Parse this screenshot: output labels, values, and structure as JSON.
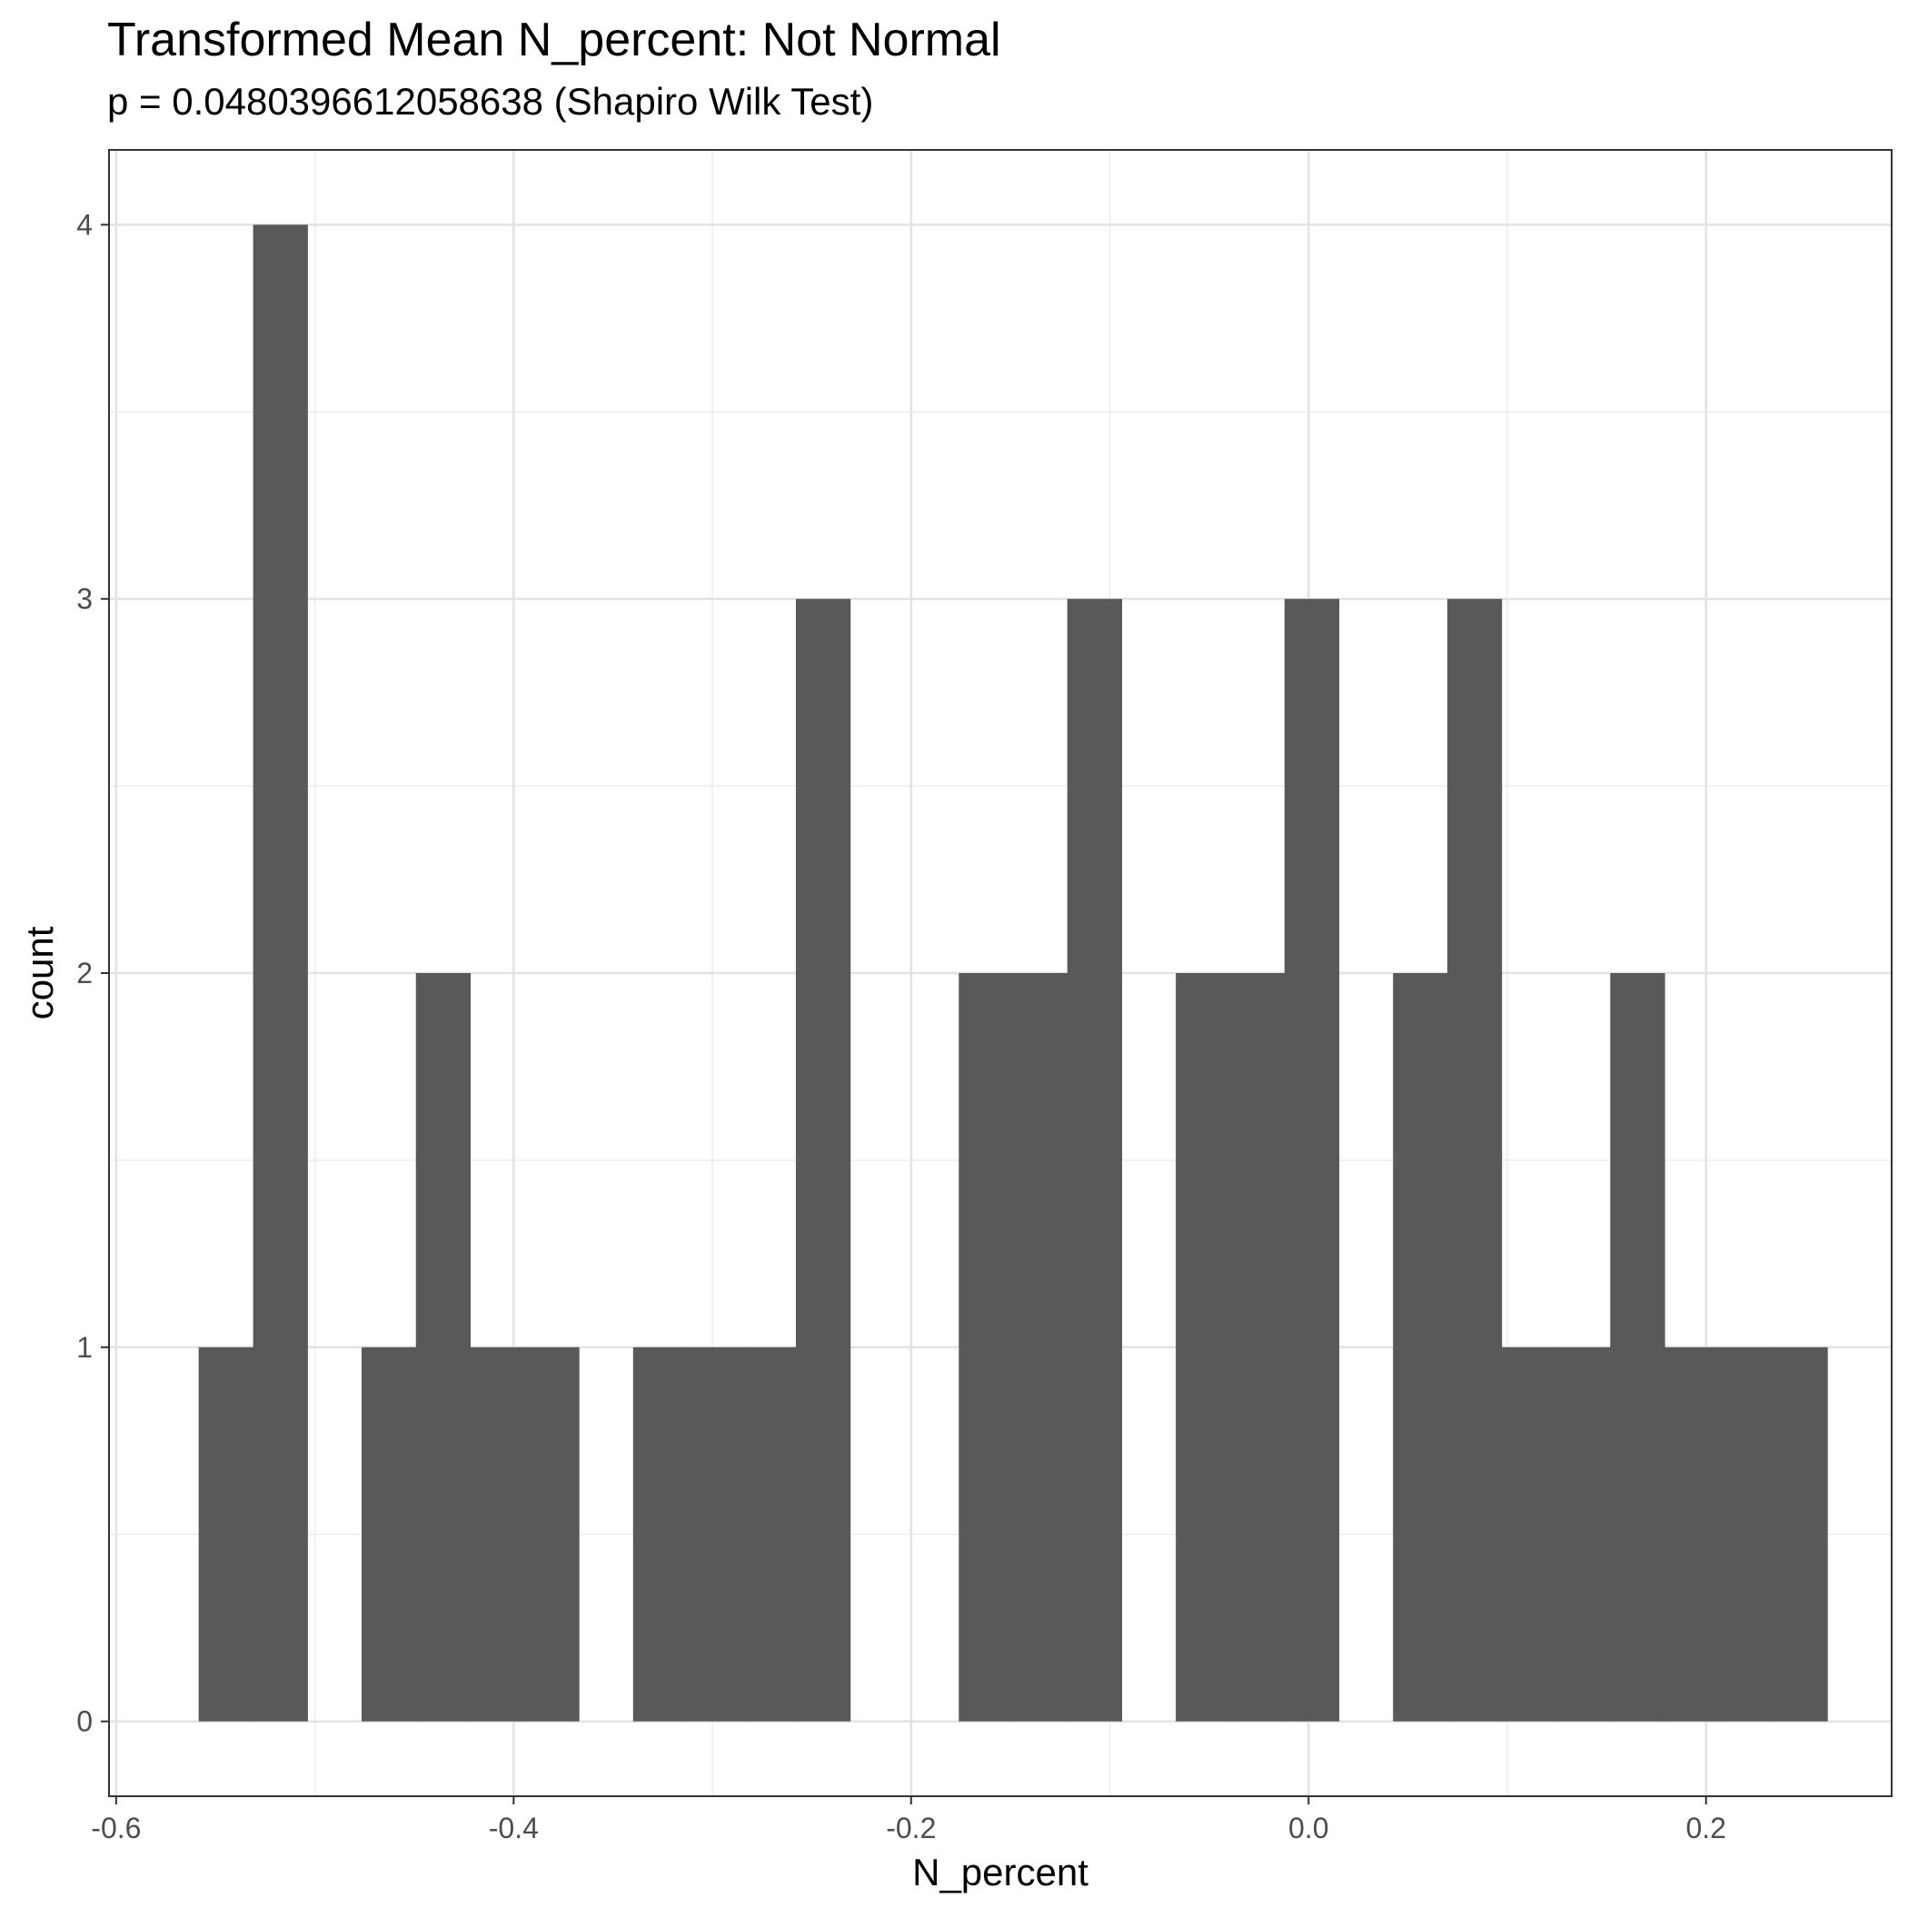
{
  "chart_data": {
    "type": "bar",
    "title": "Transformed Mean N_percent: Not Normal",
    "subtitle": "p = 0.0480396612058638 (Shapiro Wilk Test)",
    "xlabel": "N_percent",
    "ylabel": "count",
    "xlim": [
      -0.6036,
      0.2934
    ],
    "ylim": [
      -0.2,
      4.2
    ],
    "x_ticks": [
      -0.6,
      -0.4,
      -0.2,
      0.0,
      0.2
    ],
    "x_tick_labels": [
      "-0.6",
      "-0.4",
      "-0.2",
      "0.0",
      "0.2"
    ],
    "y_ticks": [
      0,
      1,
      2,
      3,
      4
    ],
    "y_tick_labels": [
      "0",
      "1",
      "2",
      "3",
      "4"
    ],
    "grid": true,
    "bar_color": "#595959",
    "bins": [
      {
        "start": -0.5585,
        "end": -0.5311,
        "count": 1
      },
      {
        "start": -0.5311,
        "end": -0.5038,
        "count": 4
      },
      {
        "start": -0.4765,
        "end": -0.4492,
        "count": 1
      },
      {
        "start": -0.4492,
        "end": -0.4219,
        "count": 2
      },
      {
        "start": -0.4219,
        "end": -0.3946,
        "count": 1
      },
      {
        "start": -0.3946,
        "end": -0.3672,
        "count": 1
      },
      {
        "start": -0.3399,
        "end": -0.3126,
        "count": 1
      },
      {
        "start": -0.3126,
        "end": -0.2853,
        "count": 1
      },
      {
        "start": -0.2853,
        "end": -0.258,
        "count": 1
      },
      {
        "start": -0.258,
        "end": -0.2307,
        "count": 3
      },
      {
        "start": -0.176,
        "end": -0.1487,
        "count": 2
      },
      {
        "start": -0.1487,
        "end": -0.1214,
        "count": 2
      },
      {
        "start": -0.1214,
        "end": -0.0941,
        "count": 3
      },
      {
        "start": -0.0668,
        "end": -0.0395,
        "count": 2
      },
      {
        "start": -0.0395,
        "end": -0.0121,
        "count": 2
      },
      {
        "start": -0.0121,
        "end": 0.0152,
        "count": 3
      },
      {
        "start": 0.0425,
        "end": 0.0698,
        "count": 2
      },
      {
        "start": 0.0698,
        "end": 0.0971,
        "count": 3
      },
      {
        "start": 0.0971,
        "end": 0.1245,
        "count": 1
      },
      {
        "start": 0.1245,
        "end": 0.1518,
        "count": 1
      },
      {
        "start": 0.1518,
        "end": 0.1791,
        "count": 2
      },
      {
        "start": 0.1791,
        "end": 0.2064,
        "count": 1
      },
      {
        "start": 0.2064,
        "end": 0.2337,
        "count": 1
      },
      {
        "start": 0.2337,
        "end": 0.261,
        "count": 1
      }
    ]
  }
}
